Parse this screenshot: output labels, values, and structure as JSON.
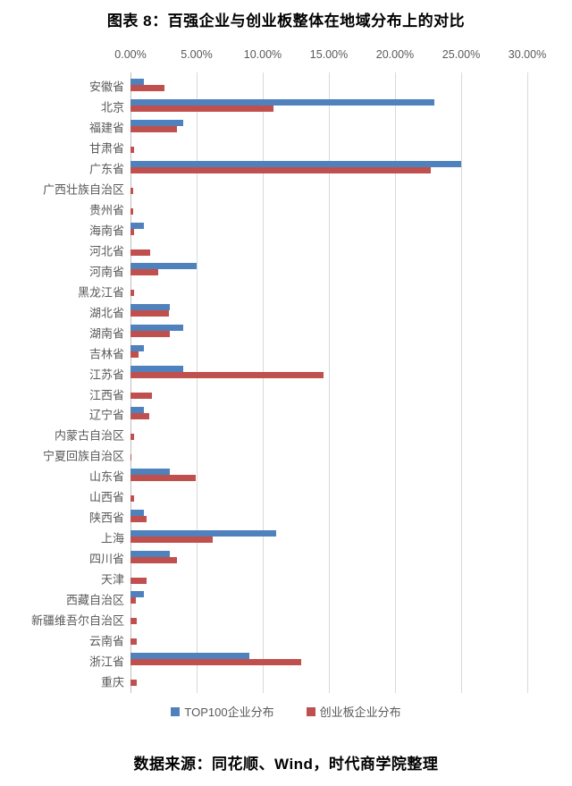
{
  "title": "图表 8：百强企业与创业板整体在地域分布上的对比",
  "source_note": "数据来源：同花顺、Wind，时代商学院整理",
  "colors": {
    "top100_blue": "#4f81bd",
    "chinext_red": "#c0504d",
    "gridline": "#d9d9d9",
    "axis_line": "#bfbfbf",
    "axis_text": "#595959",
    "title_text": "#000000"
  },
  "chart_data": {
    "type": "bar",
    "orientation": "horizontal",
    "title": "图表 8：百强企业与创业板整体在地域分布上的对比",
    "xlabel": "",
    "ylabel": "",
    "xlim": [
      0,
      30
    ],
    "x_ticks": [
      "0.00%",
      "5.00%",
      "10.00%",
      "15.00%",
      "20.00%",
      "25.00%",
      "30.00%"
    ],
    "grid": true,
    "legend_position": "bottom",
    "unit": "percent",
    "categories": [
      "安徽省",
      "北京",
      "福建省",
      "甘肃省",
      "广东省",
      "广西壮族自治区",
      "贵州省",
      "海南省",
      "河北省",
      "河南省",
      "黑龙江省",
      "湖北省",
      "湖南省",
      "吉林省",
      "江苏省",
      "江西省",
      "辽宁省",
      "内蒙古自治区",
      "宁夏回族自治区",
      "山东省",
      "山西省",
      "陕西省",
      "上海",
      "四川省",
      "天津",
      "西藏自治区",
      "新疆维吾尔自治区",
      "云南省",
      "浙江省",
      "重庆"
    ],
    "series": [
      {
        "name": "TOP100企业分布",
        "color": "#4f81bd",
        "values": [
          1,
          23,
          4,
          0,
          25,
          0,
          0,
          1,
          0,
          5,
          0,
          3,
          4,
          1,
          4,
          0,
          1,
          0,
          0,
          3,
          0,
          1,
          11,
          3,
          0,
          1,
          0,
          0,
          9,
          0
        ]
      },
      {
        "name": "创业板企业分布",
        "color": "#c0504d",
        "values": [
          2.6,
          10.8,
          3.5,
          0.3,
          22.7,
          0.2,
          0.2,
          0.3,
          1.5,
          2.1,
          0.3,
          2.9,
          3.0,
          0.6,
          14.6,
          1.6,
          1.4,
          0.3,
          0.1,
          4.9,
          0.3,
          1.2,
          6.2,
          3.5,
          1.2,
          0.4,
          0.5,
          0.5,
          12.9,
          0.5
        ]
      }
    ]
  }
}
